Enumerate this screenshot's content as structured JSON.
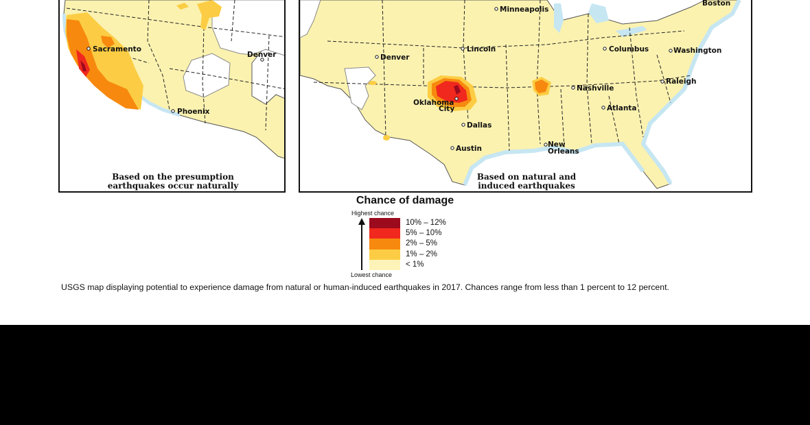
{
  "left_map": {
    "caption_line1": "Based on the presumption",
    "caption_line2": "earthquakes occur naturally",
    "cities": {
      "sacramento": "Sacramento",
      "denver": "Denver",
      "phoenix": "Phoenix"
    }
  },
  "right_map": {
    "caption_line1": "Based on natural and",
    "caption_line2": "induced earthquakes",
    "cities": {
      "boston": "Boston",
      "minneapolis": "Minneapolis",
      "lincoln": "Lincoln",
      "denver": "Denver",
      "columbus": "Columbus",
      "washington": "Washington",
      "nashville": "Nashville",
      "raleigh": "Raleigh",
      "oklahoma_city_1": "Oklahoma",
      "oklahoma_city_2": "City",
      "atlanta": "Atlanta",
      "dallas": "Dallas",
      "austin": "Austin",
      "new_orleans_1": "New",
      "new_orleans_2": "Orleans"
    }
  },
  "legend": {
    "title": "Chance of damage",
    "highest": "Highest chance",
    "lowest": "Lowest chance",
    "items": [
      {
        "label": "10% – 12%",
        "color": "#9c0a1e"
      },
      {
        "label": "5% – 10%",
        "color": "#f0281e"
      },
      {
        "label": "2% – 5%",
        "color": "#f7890f"
      },
      {
        "label": "1% – 2%",
        "color": "#fccd44"
      },
      {
        "label": "< 1%",
        "color": "#fdf3b8"
      }
    ]
  },
  "caption": "USGS map displaying potential to experience damage from natural or human-induced earthquakes in 2017. Chances range from less than 1 percent to 12 percent.",
  "colors": {
    "land": "#fbf2b0",
    "water": "#c6e6f2",
    "border": "#111111"
  }
}
